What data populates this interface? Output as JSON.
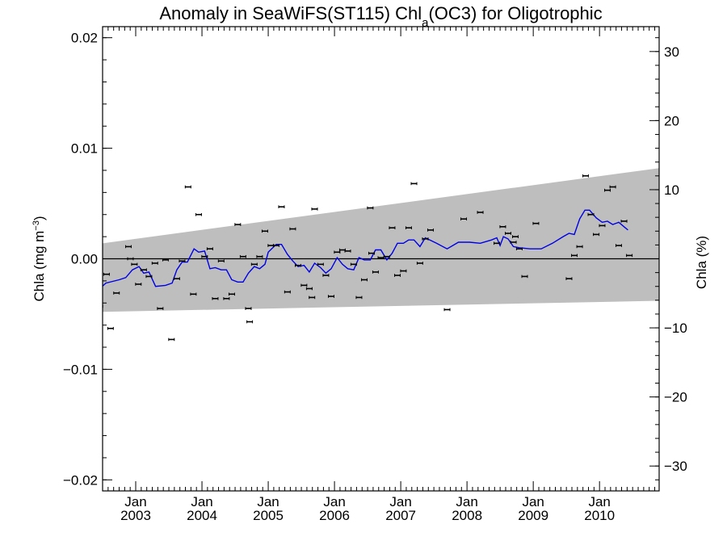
{
  "chart_data": {
    "type": "scatter",
    "title": "Anomaly in SeaWiFS(ST115) Chl",
    "title_sub": "a",
    "title_suffix": "(OC3) for Oligotrophic",
    "ylabel_left": "Chla (mg m",
    "ylabel_left_sup": "−3",
    "ylabel_left_close": ")",
    "ylabel_right": "Chla (%)",
    "ylim_left": [
      -0.021,
      0.021
    ],
    "ylim_right": [
      -33.6,
      33.6
    ],
    "xlim": [
      2002.5,
      2010.9
    ],
    "left_ticks": [
      {
        "v": -0.02,
        "label": "−0.02"
      },
      {
        "v": -0.01,
        "label": "−0.01"
      },
      {
        "v": 0.0,
        "label": "0.00"
      },
      {
        "v": 0.01,
        "label": "0.01"
      },
      {
        "v": 0.02,
        "label": "0.02"
      }
    ],
    "right_ticks": [
      {
        "v": -30,
        "label": "−30"
      },
      {
        "v": -20,
        "label": "−20"
      },
      {
        "v": -10,
        "label": "−10"
      },
      {
        "v": 10,
        "label": "10"
      },
      {
        "v": 20,
        "label": "20"
      },
      {
        "v": 30,
        "label": "30"
      }
    ],
    "x_ticks": [
      {
        "v": 2003.0,
        "month": "Jan",
        "year": "2003"
      },
      {
        "v": 2004.0,
        "month": "Jan",
        "year": "2004"
      },
      {
        "v": 2005.0,
        "month": "Jan",
        "year": "2005"
      },
      {
        "v": 2006.0,
        "month": "Jan",
        "year": "2006"
      },
      {
        "v": 2007.0,
        "month": "Jan",
        "year": "2007"
      },
      {
        "v": 2008.0,
        "month": "Jan",
        "year": "2008"
      },
      {
        "v": 2009.0,
        "month": "Jan",
        "year": "2009"
      },
      {
        "v": 2010.0,
        "month": "Jan",
        "year": "2010"
      }
    ],
    "band": {
      "x": [
        2002.5,
        2010.9
      ],
      "upper": [
        0.0014,
        0.0082
      ],
      "lower": [
        -0.0048,
        -0.0038
      ],
      "color": "#bebebe"
    },
    "zero_line": 0.0,
    "points_color": "#000000",
    "points": [
      [
        2002.46,
        -0.0043
      ],
      [
        2002.56,
        -0.0014
      ],
      [
        2002.62,
        -0.0063
      ],
      [
        2002.71,
        -0.0031
      ],
      [
        2002.89,
        0.0011
      ],
      [
        2002.92,
        0.0
      ],
      [
        2002.98,
        -0.0005
      ],
      [
        2003.04,
        -0.0023
      ],
      [
        2003.12,
        -0.001
      ],
      [
        2003.2,
        -0.0016
      ],
      [
        2003.29,
        -0.0004
      ],
      [
        2003.37,
        -0.0045
      ],
      [
        2003.45,
        -0.0001
      ],
      [
        2003.54,
        -0.0073
      ],
      [
        2003.62,
        -0.0018
      ],
      [
        2003.7,
        -0.0002
      ],
      [
        2003.79,
        0.0065
      ],
      [
        2003.87,
        -0.0032
      ],
      [
        2003.95,
        0.004
      ],
      [
        2004.04,
        0.0002
      ],
      [
        2004.12,
        0.0009
      ],
      [
        2004.2,
        -0.0036
      ],
      [
        2004.29,
        -0.0002
      ],
      [
        2004.37,
        -0.0036
      ],
      [
        2004.45,
        -0.0032
      ],
      [
        2004.54,
        0.0031
      ],
      [
        2004.62,
        0.0002
      ],
      [
        2004.7,
        -0.0045
      ],
      [
        2004.72,
        -0.0057
      ],
      [
        2004.79,
        -0.0005
      ],
      [
        2004.87,
        0.0002
      ],
      [
        2004.95,
        0.0025
      ],
      [
        2005.04,
        0.0012
      ],
      [
        2005.12,
        0.0012
      ],
      [
        2005.2,
        0.0047
      ],
      [
        2005.29,
        -0.003
      ],
      [
        2005.37,
        0.0027
      ],
      [
        2005.45,
        -0.0006
      ],
      [
        2005.54,
        -0.0024
      ],
      [
        2005.62,
        -0.0027
      ],
      [
        2005.66,
        -0.0035
      ],
      [
        2005.7,
        0.0045
      ],
      [
        2005.79,
        -0.0005
      ],
      [
        2005.87,
        -0.0015
      ],
      [
        2005.95,
        -0.0034
      ],
      [
        2006.04,
        0.0006
      ],
      [
        2006.12,
        0.0008
      ],
      [
        2006.2,
        0.0007
      ],
      [
        2006.29,
        -0.0005
      ],
      [
        2006.37,
        -0.0035
      ],
      [
        2006.45,
        -0.0019
      ],
      [
        2006.54,
        0.0046
      ],
      [
        2006.56,
        0.0005
      ],
      [
        2006.62,
        -0.0012
      ],
      [
        2006.7,
        0.0001
      ],
      [
        2006.79,
        0.0002
      ],
      [
        2006.87,
        0.0028
      ],
      [
        2006.95,
        -0.0015
      ],
      [
        2007.04,
        -0.0011
      ],
      [
        2007.12,
        0.0028
      ],
      [
        2007.2,
        0.0068
      ],
      [
        2007.29,
        -0.0004
      ],
      [
        2007.37,
        0.0018
      ],
      [
        2007.45,
        0.0026
      ],
      [
        2007.7,
        -0.0046
      ],
      [
        2007.95,
        0.0036
      ],
      [
        2008.2,
        0.0042
      ],
      [
        2008.45,
        0.0014
      ],
      [
        2008.54,
        0.0029
      ],
      [
        2008.62,
        0.0023
      ],
      [
        2008.7,
        0.0015
      ],
      [
        2008.73,
        0.002
      ],
      [
        2008.79,
        0.0009
      ],
      [
        2008.87,
        -0.0016
      ],
      [
        2009.04,
        0.0032
      ],
      [
        2009.54,
        -0.0018
      ],
      [
        2009.62,
        0.0003
      ],
      [
        2009.7,
        0.0011
      ],
      [
        2009.79,
        0.0075
      ],
      [
        2009.87,
        0.004
      ],
      [
        2009.95,
        0.0022
      ],
      [
        2010.04,
        0.003
      ],
      [
        2010.12,
        0.0062
      ],
      [
        2010.2,
        0.0065
      ],
      [
        2010.29,
        0.0012
      ],
      [
        2010.37,
        0.0034
      ],
      [
        2010.45,
        0.0003
      ]
    ],
    "line_color": "#0000e6",
    "line": [
      [
        2002.4,
        -0.003
      ],
      [
        2002.55,
        -0.0022
      ],
      [
        2002.75,
        -0.0019
      ],
      [
        2002.85,
        -0.0017
      ],
      [
        2002.95,
        -0.001
      ],
      [
        2003.05,
        -0.0007
      ],
      [
        2003.12,
        -0.0013
      ],
      [
        2003.2,
        -0.0012
      ],
      [
        2003.3,
        -0.0025
      ],
      [
        2003.45,
        -0.0024
      ],
      [
        2003.55,
        -0.0022
      ],
      [
        2003.62,
        -0.001
      ],
      [
        2003.7,
        -0.0003
      ],
      [
        2003.78,
        -0.0003
      ],
      [
        2003.88,
        0.0009
      ],
      [
        2003.95,
        0.0006
      ],
      [
        2004.04,
        0.0007
      ],
      [
        2004.12,
        -0.0009
      ],
      [
        2004.2,
        -0.0008
      ],
      [
        2004.29,
        -0.001
      ],
      [
        2004.37,
        -0.001
      ],
      [
        2004.45,
        -0.0019
      ],
      [
        2004.54,
        -0.0021
      ],
      [
        2004.62,
        -0.0021
      ],
      [
        2004.7,
        -0.0013
      ],
      [
        2004.79,
        -0.0007
      ],
      [
        2004.87,
        -0.0009
      ],
      [
        2004.95,
        -0.0005
      ],
      [
        2005.0,
        0.0006
      ],
      [
        2005.12,
        0.0013
      ],
      [
        2005.2,
        0.0013
      ],
      [
        2005.29,
        0.0004
      ],
      [
        2005.37,
        -0.0002
      ],
      [
        2005.45,
        -0.0007
      ],
      [
        2005.54,
        -0.0006
      ],
      [
        2005.62,
        -0.0012
      ],
      [
        2005.7,
        -0.0004
      ],
      [
        2005.79,
        -0.0008
      ],
      [
        2005.87,
        -0.0013
      ],
      [
        2005.95,
        -0.0009
      ],
      [
        2006.04,
        0.0001
      ],
      [
        2006.12,
        -0.0005
      ],
      [
        2006.2,
        -0.0009
      ],
      [
        2006.29,
        -0.001
      ],
      [
        2006.37,
        0.0001
      ],
      [
        2006.45,
        -0.0001
      ],
      [
        2006.54,
        -0.0001
      ],
      [
        2006.62,
        0.0008
      ],
      [
        2006.7,
        0.0008
      ],
      [
        2006.79,
        -0.0001
      ],
      [
        2006.87,
        0.0005
      ],
      [
        2006.95,
        0.0014
      ],
      [
        2007.04,
        0.0014
      ],
      [
        2007.12,
        0.0017
      ],
      [
        2007.2,
        0.0017
      ],
      [
        2007.29,
        0.0011
      ],
      [
        2007.37,
        0.0019
      ],
      [
        2007.54,
        0.0014
      ],
      [
        2007.7,
        0.0009
      ],
      [
        2007.87,
        0.0015
      ],
      [
        2008.04,
        0.0015
      ],
      [
        2008.2,
        0.0014
      ],
      [
        2008.37,
        0.0017
      ],
      [
        2008.45,
        0.0019
      ],
      [
        2008.5,
        0.0012
      ],
      [
        2008.55,
        0.002
      ],
      [
        2008.62,
        0.0018
      ],
      [
        2008.7,
        0.0011
      ],
      [
        2008.79,
        0.001
      ],
      [
        2008.95,
        0.0009
      ],
      [
        2009.12,
        0.0009
      ],
      [
        2009.29,
        0.0014
      ],
      [
        2009.45,
        0.002
      ],
      [
        2009.54,
        0.0023
      ],
      [
        2009.62,
        0.0022
      ],
      [
        2009.7,
        0.0036
      ],
      [
        2009.78,
        0.0044
      ],
      [
        2009.85,
        0.0044
      ],
      [
        2009.95,
        0.0037
      ],
      [
        2010.04,
        0.0033
      ],
      [
        2010.12,
        0.0034
      ],
      [
        2010.2,
        0.0031
      ],
      [
        2010.29,
        0.0033
      ],
      [
        2010.37,
        0.0029
      ],
      [
        2010.43,
        0.0026
      ]
    ],
    "grid": false,
    "legend": "none"
  }
}
